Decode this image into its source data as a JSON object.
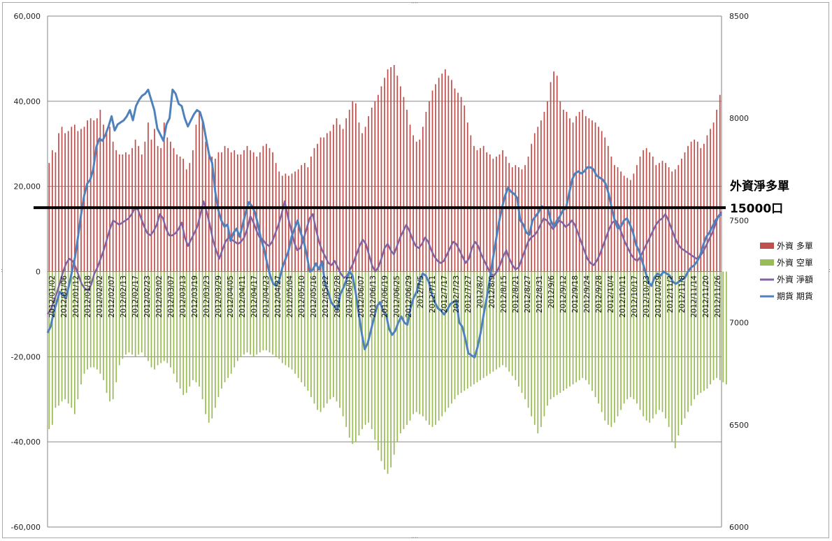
{
  "colors": {
    "long_bars": "#c0504d",
    "short_bars": "#9bbb59",
    "net_line": "#8064a2",
    "futures_line": "#4f81bd",
    "threshold_line": "#000000",
    "grid": "#868686"
  },
  "annotation": {
    "title": "外資淨多單",
    "value": "15000口"
  },
  "chart_data": {
    "type": "bar",
    "left_axis": {
      "ylim": [
        -60000,
        60000
      ],
      "ticks": [
        "60,000",
        "40,000",
        "20,000",
        "0",
        "-20,000",
        "-40,000",
        "-60,000"
      ],
      "tick_values": [
        60000,
        40000,
        20000,
        0,
        -20000,
        -40000,
        -60000
      ]
    },
    "right_axis": {
      "ylim": [
        6000,
        8500
      ],
      "ticks": [
        "8500",
        "8000",
        "7500",
        "7000",
        "6500",
        "6000"
      ],
      "tick_values": [
        8500,
        8000,
        7500,
        7000,
        6500,
        6000
      ]
    },
    "grid": true,
    "legend_position": "right",
    "threshold": 15000,
    "x_tick_labels": [
      "2012/01/02",
      "2012/01/06",
      "2012/01/12",
      "2012/01/18",
      "2012/02/02",
      "2012/02/07",
      "2012/02/13",
      "2012/02/17",
      "2012/02/23",
      "2012/03/02",
      "2012/03/07",
      "2012/03/13",
      "2012/03/19",
      "2012/03/23",
      "2012/03/29",
      "2012/04/05",
      "2012/04/11",
      "2012/04/17",
      "2012/04/23",
      "2012/04/27",
      "2012/05/04",
      "2012/05/10",
      "2012/05/16",
      "2012/05/22",
      "2012/05/28",
      "2012/06/01",
      "2012/06/07",
      "2012/06/13",
      "2012/06/19",
      "2012/06/25",
      "2012/06/29",
      "2012/7/5",
      "2012/7/11",
      "2012/7/17",
      "2012/7/23",
      "2012/7/27",
      "2012/8/2",
      "2012/8/9",
      "2012/8/15",
      "2012/8/21",
      "2012/8/27",
      "2012/8/31",
      "2012/9/6",
      "2012/9/12",
      "2012/9/18",
      "2012/9/24",
      "2012/9/28",
      "2012/10/4",
      "2012/10/11",
      "2012/10/17",
      "2012/10/23",
      "2012/10/29",
      "2012/11/2",
      "2012/11/8",
      "2012/11/14",
      "2012/11/20",
      "2012/11/26"
    ],
    "series": [
      {
        "name": "外資 多單",
        "kind": "bar",
        "values": [
          25500,
          28500,
          28000,
          32500,
          34000,
          32500,
          33000,
          34000,
          34500,
          33000,
          33500,
          34000,
          35500,
          36000,
          35500,
          36000,
          38000,
          34500,
          33000,
          34000,
          30500,
          28500,
          27500,
          27500,
          28000,
          27500,
          29000,
          31000,
          29500,
          27500,
          30500,
          35000,
          31000,
          33500,
          29500,
          29000,
          35000,
          31500,
          30500,
          29000,
          27500,
          27000,
          26500,
          24000,
          25500,
          28500,
          34500,
          37500,
          35500,
          30500,
          28000,
          27000,
          26500,
          28000,
          28000,
          29500,
          29000,
          28000,
          28500,
          27500,
          27500,
          28500,
          29500,
          28500,
          28000,
          27000,
          28000,
          29500,
          30000,
          29000,
          28000,
          25500,
          23500,
          22500,
          23000,
          22500,
          23000,
          23500,
          24000,
          25000,
          25500,
          24500,
          27000,
          29000,
          30000,
          31500,
          31500,
          32500,
          33000,
          34500,
          36000,
          34500,
          33500,
          36000,
          38000,
          40000,
          39500,
          35000,
          32500,
          34000,
          36500,
          38500,
          40000,
          41500,
          43500,
          45500,
          47500,
          48000,
          48500,
          46000,
          43500,
          41000,
          38000,
          34500,
          32000,
          30500,
          31000,
          34000,
          37500,
          40000,
          42500,
          44000,
          45500,
          46500,
          47500,
          46000,
          45000,
          43000,
          42000,
          41000,
          39000,
          35000,
          32000,
          29500,
          28500,
          29000,
          29500,
          28000,
          27500,
          26500,
          27000,
          27500,
          28500,
          27000,
          25500,
          24500,
          25000,
          24500,
          24000,
          25000,
          27000,
          30000,
          32500,
          34000,
          35500,
          37500,
          40000,
          44500,
          47000,
          46000,
          40000,
          38000,
          37500,
          36000,
          35000,
          36500,
          37500,
          38000,
          36500,
          36000,
          35500,
          35000,
          34000,
          33000,
          31500,
          29500,
          27000,
          25000,
          24500,
          23500,
          22500,
          22000,
          21500,
          23000,
          25000,
          27000,
          28500,
          29000,
          28000,
          27000,
          25000,
          25500,
          26000,
          25500,
          24500,
          23500,
          24000,
          25000,
          26500,
          28000,
          29500,
          30500,
          31000,
          30500,
          29000,
          30000,
          32000,
          33500,
          35000,
          38000,
          41500
        ]
      },
      {
        "name": "外資 空單",
        "kind": "bar",
        "values": [
          -37000,
          -36000,
          -32000,
          -31500,
          -30500,
          -30000,
          -31000,
          -32000,
          -33500,
          -30000,
          -26500,
          -24000,
          -23000,
          -22500,
          -22500,
          -23000,
          -24000,
          -25500,
          -28500,
          -30500,
          -30000,
          -26000,
          -22000,
          -20500,
          -19500,
          -19000,
          -19500,
          -20000,
          -19500,
          -19000,
          -20000,
          -21000,
          -22500,
          -23000,
          -22000,
          -21500,
          -21000,
          -21500,
          -22500,
          -24000,
          -26000,
          -27500,
          -29000,
          -28500,
          -27000,
          -25500,
          -26000,
          -27000,
          -30000,
          -33500,
          -35500,
          -34500,
          -32000,
          -29500,
          -27500,
          -26000,
          -25000,
          -24000,
          -22500,
          -21000,
          -20000,
          -19500,
          -19000,
          -19500,
          -20000,
          -19500,
          -19000,
          -18500,
          -18500,
          -19000,
          -19500,
          -20000,
          -20500,
          -21500,
          -22000,
          -22500,
          -23000,
          -24000,
          -25000,
          -26000,
          -27000,
          -28000,
          -29500,
          -31000,
          -32500,
          -33000,
          -32000,
          -31000,
          -30000,
          -29500,
          -30500,
          -32000,
          -34000,
          -36500,
          -39000,
          -40500,
          -40000,
          -38500,
          -37000,
          -36000,
          -35500,
          -37000,
          -39500,
          -42000,
          -44500,
          -46500,
          -47500,
          -46000,
          -43000,
          -40000,
          -38000,
          -37000,
          -36000,
          -35000,
          -33500,
          -33000,
          -33500,
          -34000,
          -35000,
          -36000,
          -36500,
          -36000,
          -35000,
          -34000,
          -33000,
          -32000,
          -31000,
          -30000,
          -29000,
          -28500,
          -28000,
          -27500,
          -27000,
          -26500,
          -26000,
          -25500,
          -25000,
          -24500,
          -24000,
          -23500,
          -23000,
          -22500,
          -22000,
          -22500,
          -23500,
          -24500,
          -25500,
          -27000,
          -28500,
          -30000,
          -32000,
          -34000,
          -36000,
          -38000,
          -36500,
          -34000,
          -31500,
          -30000,
          -29500,
          -29000,
          -28500,
          -28000,
          -27500,
          -27000,
          -26500,
          -26000,
          -25500,
          -25000,
          -25500,
          -26500,
          -28000,
          -29500,
          -31000,
          -33000,
          -35000,
          -36000,
          -36500,
          -35500,
          -34000,
          -32500,
          -31000,
          -30000,
          -29500,
          -30000,
          -31000,
          -32500,
          -34000,
          -35000,
          -35500,
          -34500,
          -33500,
          -32500,
          -33000,
          -34500,
          -36500,
          -40000,
          -41500,
          -38500,
          -36000,
          -34500,
          -33000,
          -31500,
          -30000,
          -29000,
          -28500,
          -28000,
          -27500,
          -26500,
          -25500,
          -25000,
          -25500,
          -26000,
          -26500
        ]
      },
      {
        "name": "外資 淨額",
        "kind": "line",
        "axis": "left",
        "values": [
          -10000,
          -9000,
          -7000,
          -5000,
          -2500,
          0,
          2000,
          3000,
          2500,
          1000,
          -1000,
          -3000,
          -4000,
          -4500,
          -3000,
          -500,
          1000,
          3000,
          5000,
          7500,
          10000,
          12000,
          11500,
          11000,
          11500,
          12000,
          12500,
          13500,
          15000,
          14500,
          12500,
          10500,
          9000,
          8500,
          9500,
          11000,
          13500,
          12500,
          10000,
          8500,
          8500,
          9000,
          10000,
          11500,
          8000,
          6000,
          7500,
          9000,
          10500,
          13500,
          16500,
          14000,
          11000,
          7500,
          5000,
          3000,
          5000,
          7000,
          8000,
          7500,
          7000,
          6500,
          7000,
          8000,
          10000,
          13000,
          11500,
          9500,
          8000,
          7500,
          6500,
          6000,
          7000,
          9000,
          11000,
          13500,
          16500,
          13000,
          10000,
          7000,
          5000,
          5500,
          7500,
          10000,
          12500,
          13500,
          10000,
          7000,
          5000,
          3500,
          2000,
          1500,
          2500,
          1000,
          -500,
          -1500,
          -1000,
          500,
          2000,
          4000,
          6000,
          7500,
          6500,
          4000,
          1500,
          0,
          1000,
          3000,
          5500,
          6500,
          5000,
          4000,
          6000,
          8000,
          9500,
          11000,
          9500,
          7500,
          6000,
          5500,
          6500,
          8000,
          7000,
          5000,
          3500,
          2500,
          2000,
          2500,
          4000,
          5500,
          7000,
          6500,
          5000,
          3500,
          2000,
          3000,
          5500,
          7000,
          6000,
          4000,
          2500,
          1000,
          -500,
          -1000,
          0,
          1500,
          3500,
          5000,
          3000,
          1500,
          500,
          1000,
          3000,
          5000,
          7000,
          8000,
          8500,
          9500,
          11000,
          12500,
          12000,
          11000,
          10000,
          11000,
          12000,
          11500,
          10500,
          11000,
          12000,
          11000,
          9000,
          7000,
          5000,
          3000,
          2000,
          1500,
          2500,
          4000,
          6000,
          8000,
          10000,
          11500,
          12000,
          11000,
          9000,
          7000,
          5500,
          4000,
          3000,
          2500,
          3500,
          5000,
          6500,
          8000,
          9500,
          11000,
          12000,
          12500,
          13500,
          12000,
          10000,
          8000,
          6500,
          5500,
          5000,
          4500,
          4000,
          3500,
          3000,
          3500,
          4500,
          6000,
          7500,
          9000,
          11000,
          13000,
          14000
        ]
      },
      {
        "name": "期貨 期貨",
        "kind": "line",
        "axis": "right",
        "values": [
          6950,
          6980,
          7050,
          7100,
          7150,
          7140,
          7120,
          7180,
          7250,
          7320,
          7420,
          7530,
          7620,
          7680,
          7700,
          7750,
          7860,
          7900,
          7890,
          7920,
          7960,
          8010,
          7940,
          7970,
          7980,
          7990,
          8010,
          8040,
          7990,
          8060,
          8090,
          8110,
          8120,
          8140,
          8090,
          8040,
          7950,
          7920,
          7890,
          7970,
          8000,
          8140,
          8120,
          8070,
          8060,
          8000,
          7960,
          7990,
          8020,
          8040,
          8030,
          7980,
          7900,
          7820,
          7780,
          7640,
          7550,
          7500,
          7470,
          7480,
          7400,
          7440,
          7460,
          7420,
          7480,
          7540,
          7590,
          7570,
          7540,
          7480,
          7410,
          7360,
          7290,
          7230,
          7190,
          7180,
          7210,
          7270,
          7310,
          7350,
          7420,
          7460,
          7500,
          7440,
          7400,
          7330,
          7250,
          7260,
          7290,
          7260,
          7300,
          7190,
          7150,
          7100,
          7080,
          7060,
          7140,
          7170,
          7210,
          7250,
          7230,
          7150,
          7050,
          6950,
          6870,
          6900,
          6960,
          7020,
          7080,
          7100,
          7060,
          7040,
          6970,
          6940,
          6960,
          7000,
          7030,
          7000,
          6990,
          7070,
          7120,
          7150,
          7200,
          7240,
          7230,
          7200,
          7140,
          7100,
          7070,
          7060,
          7040,
          7060,
          7090,
          7100,
          7110,
          7000,
          6980,
          6920,
          6850,
          6840,
          6830,
          6880,
          6950,
          7040,
          7120,
          7210,
          7310,
          7400,
          7490,
          7560,
          7620,
          7660,
          7640,
          7630,
          7610,
          7500,
          7480,
          7440,
          7430,
          7500,
          7520,
          7540,
          7570,
          7560,
          7560,
          7500,
          7470,
          7500,
          7520,
          7550,
          7560,
          7630,
          7700,
          7730,
          7740,
          7730,
          7740,
          7760,
          7760,
          7750,
          7720,
          7710,
          7700,
          7680,
          7630,
          7560,
          7500,
          7460,
          7470,
          7500,
          7510,
          7480,
          7440,
          7380,
          7350,
          7300,
          7250,
          7200,
          7180,
          7220,
          7240,
          7230,
          7250,
          7240,
          7230,
          7200,
          7190,
          7200,
          7210,
          7220,
          7250,
          7270,
          7280,
          7300,
          7330,
          7380,
          7420,
          7440,
          7470,
          7500,
          7520,
          7530
        ]
      }
    ]
  }
}
